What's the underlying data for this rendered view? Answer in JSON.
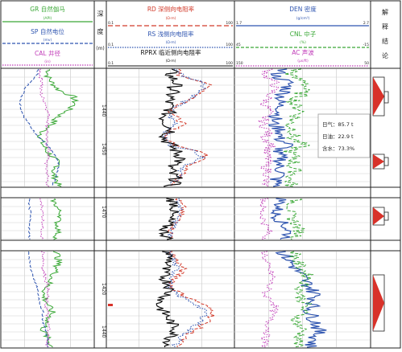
{
  "header": {
    "gr": {
      "label": "GR 自然伽马",
      "unit": "(API)",
      "color": "#3aa836"
    },
    "sp": {
      "label": "SP 自然电位",
      "unit": "(mv)",
      "color": "#2f55b0"
    },
    "cal": {
      "label": "CAL 井径",
      "unit": "(in)",
      "color": "#c03ab8"
    },
    "depth_label": "深\n度",
    "depth_unit": "(m)",
    "rd": {
      "label": "RD 深侧向电阻率",
      "unit": "(Ω·m)",
      "color": "#d23a2a",
      "min": "0.1",
      "max": "100"
    },
    "rs": {
      "label": "RS 浅侧向电阻率",
      "unit": "(Ω·m)",
      "color": "#2f55b0",
      "min": "0.1",
      "max": "100"
    },
    "rprx": {
      "label": "RPRX 临近侧向电阻率",
      "unit": "(Ω·m)",
      "color": "#111111",
      "min": "0.1",
      "max": "100"
    },
    "den": {
      "label": "DEN 密度",
      "unit": "(g/cm³)",
      "color": "#2f55b0",
      "min": "1.7",
      "max": "2.7"
    },
    "cnl": {
      "label": "CNL 中子",
      "unit": "(%)",
      "color": "#3aa836",
      "min": "45",
      "max": "-15"
    },
    "ac": {
      "label": "AC 声波",
      "unit": "(μs/ft)",
      "color": "#c03ab8",
      "min": "150",
      "max": "50"
    },
    "interp_label": "解\n释\n结\n论"
  },
  "depth_ticks": [
    "1440",
    "1450",
    "1470",
    "1420",
    "1440"
  ],
  "annotation": {
    "gas": "日气：85.7 t",
    "oil": "日油：22.9 t",
    "water": "含水：73.3%"
  },
  "chart_data": {
    "type": "line",
    "panels": 3,
    "tracks": [
      "GR/SP/CAL",
      "Depth",
      "RD/RS/RPRX",
      "DEN/CNL/AC",
      "Interpretation"
    ],
    "series": [
      {
        "name": "GR",
        "track": "GR/SP/CAL",
        "panel": 0,
        "values": [
          0.45,
          0.45,
          0.46,
          0.55,
          0.6,
          0.58,
          0.6,
          0.75,
          0.8,
          0.82,
          0.72,
          0.6,
          0.55,
          0.45,
          0.4,
          0.38,
          0.42,
          0.45,
          0.5,
          0.55,
          0.6,
          0.58,
          0.5,
          0.6,
          0.62
        ]
      },
      {
        "name": "SP",
        "track": "GR/SP/CAL",
        "panel": 0,
        "values": [
          0.4,
          0.42,
          0.45,
          0.4,
          0.3,
          0.25,
          0.22,
          0.2,
          0.22,
          0.25,
          0.28,
          0.3,
          0.35,
          0.4,
          0.45,
          0.5,
          0.55,
          0.58,
          0.6,
          0.62,
          0.62,
          0.6,
          0.58,
          0.55,
          0.55
        ]
      },
      {
        "name": "CAL",
        "track": "GR/SP/CAL",
        "panel": 0,
        "values": [
          0.4,
          0.4,
          0.42,
          0.42,
          0.45,
          0.44,
          0.42,
          0.42,
          0.45,
          0.48,
          0.5,
          0.52,
          0.5,
          0.48,
          0.5,
          0.52,
          0.5,
          0.48,
          0.48,
          0.5,
          0.52,
          0.5,
          0.48,
          0.5,
          0.5
        ]
      }
    ],
    "interpretation": [
      "油水同层",
      "油层",
      "油层",
      "油层"
    ]
  }
}
